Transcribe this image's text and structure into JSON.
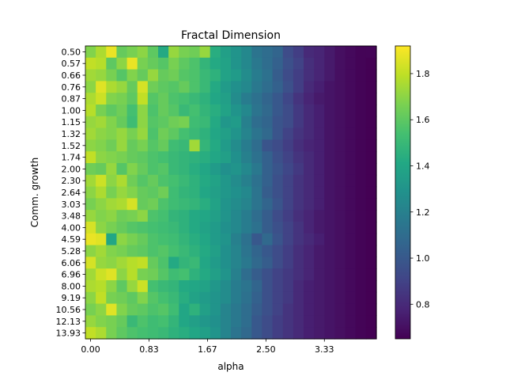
{
  "chart_data": {
    "type": "heatmap",
    "title": "Fractal Dimension",
    "xlabel": "alpha",
    "ylabel": "Comm. growth",
    "colormap": "viridis",
    "color_range": [
      0.65,
      1.92
    ],
    "colorbar_ticks": [
      0.8,
      1.0,
      1.2,
      1.4,
      1.6,
      1.8
    ],
    "colorbar_tick_labels": [
      "0.8",
      "1.0",
      "1.2",
      "1.4",
      "1.6",
      "1.8"
    ],
    "x_range": [
      0.0,
      4.0
    ],
    "x_ticks": [
      0.0,
      0.8333,
      1.6667,
      2.5,
      3.3333
    ],
    "x_tick_labels": [
      "0.00",
      "0.83",
      "1.67",
      "2.50",
      "3.33"
    ],
    "y_labels": [
      "0.50",
      "0.57",
      "0.66",
      "0.76",
      "0.87",
      "1.00",
      "1.15",
      "1.32",
      "1.52",
      "1.74",
      "2.00",
      "2.30",
      "2.64",
      "3.03",
      "3.48",
      "4.00",
      "4.59",
      "5.28",
      "6.06",
      "6.96",
      "8.00",
      "9.19",
      "10.56",
      "12.13",
      "13.93"
    ],
    "z": [
      [
        1.68,
        1.76,
        1.88,
        1.62,
        1.66,
        1.7,
        1.6,
        1.42,
        1.72,
        1.66,
        1.64,
        1.72,
        1.44,
        1.36,
        1.3,
        1.24,
        1.14,
        1.1,
        1.06,
        0.94,
        0.88,
        0.8,
        0.78,
        0.74,
        0.7,
        0.68,
        0.66,
        0.66
      ],
      [
        1.8,
        1.78,
        1.6,
        1.7,
        1.88,
        1.66,
        1.62,
        1.58,
        1.66,
        1.6,
        1.56,
        1.48,
        1.42,
        1.38,
        1.3,
        1.24,
        1.16,
        1.1,
        1.04,
        0.96,
        0.9,
        0.82,
        0.78,
        0.74,
        0.7,
        0.68,
        0.66,
        0.65
      ],
      [
        1.74,
        1.72,
        1.66,
        1.58,
        1.68,
        1.62,
        1.72,
        1.62,
        1.64,
        1.58,
        1.56,
        1.5,
        1.46,
        1.38,
        1.34,
        1.26,
        1.18,
        1.12,
        1.02,
        0.94,
        0.88,
        0.82,
        0.78,
        0.74,
        0.7,
        0.68,
        0.66,
        0.65
      ],
      [
        1.7,
        1.86,
        1.76,
        1.72,
        1.62,
        1.84,
        1.64,
        1.6,
        1.58,
        1.62,
        1.56,
        1.5,
        1.42,
        1.34,
        1.28,
        1.24,
        1.16,
        1.1,
        1.04,
        0.96,
        0.88,
        0.8,
        0.76,
        0.72,
        0.7,
        0.68,
        0.66,
        0.65
      ],
      [
        1.76,
        1.82,
        1.68,
        1.66,
        1.6,
        1.8,
        1.58,
        1.62,
        1.56,
        1.54,
        1.5,
        1.46,
        1.4,
        1.36,
        1.26,
        1.18,
        1.12,
        1.06,
        1.0,
        0.92,
        0.84,
        0.78,
        0.74,
        0.72,
        0.7,
        0.68,
        0.66,
        0.65
      ],
      [
        1.78,
        1.66,
        1.6,
        1.64,
        1.54,
        1.7,
        1.56,
        1.62,
        1.58,
        1.5,
        1.54,
        1.48,
        1.44,
        1.38,
        1.3,
        1.24,
        1.14,
        1.08,
        1.0,
        0.94,
        0.86,
        0.8,
        0.76,
        0.72,
        0.7,
        0.68,
        0.66,
        0.65
      ],
      [
        1.72,
        1.74,
        1.68,
        1.62,
        1.52,
        1.7,
        1.58,
        1.6,
        1.64,
        1.66,
        1.52,
        1.5,
        1.42,
        1.32,
        1.34,
        1.2,
        1.1,
        1.06,
        0.98,
        0.94,
        0.86,
        0.8,
        0.76,
        0.72,
        0.7,
        0.68,
        0.66,
        0.65
      ],
      [
        1.74,
        1.7,
        1.68,
        1.72,
        1.66,
        1.72,
        1.56,
        1.64,
        1.6,
        1.54,
        1.5,
        1.46,
        1.4,
        1.36,
        1.3,
        1.22,
        1.14,
        1.08,
        0.98,
        0.9,
        0.84,
        0.8,
        0.76,
        0.72,
        0.7,
        0.68,
        0.66,
        0.65
      ],
      [
        1.7,
        1.68,
        1.64,
        1.72,
        1.62,
        1.66,
        1.58,
        1.62,
        1.52,
        1.5,
        1.74,
        1.48,
        1.42,
        1.34,
        1.26,
        1.18,
        1.1,
        0.98,
        0.94,
        0.88,
        0.82,
        0.78,
        0.76,
        0.72,
        0.7,
        0.68,
        0.66,
        0.65
      ],
      [
        1.8,
        1.7,
        1.68,
        1.66,
        1.62,
        1.6,
        1.56,
        1.54,
        1.5,
        1.48,
        1.46,
        1.44,
        1.4,
        1.36,
        1.28,
        1.2,
        1.12,
        1.04,
        0.96,
        0.9,
        0.84,
        0.8,
        0.76,
        0.72,
        0.7,
        0.68,
        0.66,
        0.65
      ],
      [
        1.64,
        1.62,
        1.72,
        1.58,
        1.68,
        1.62,
        1.56,
        1.58,
        1.5,
        1.48,
        1.44,
        1.4,
        1.34,
        1.28,
        1.3,
        1.24,
        1.16,
        1.04,
        0.98,
        0.92,
        0.86,
        0.8,
        0.76,
        0.72,
        0.7,
        0.68,
        0.66,
        0.65
      ],
      [
        1.74,
        1.82,
        1.7,
        1.76,
        1.64,
        1.58,
        1.62,
        1.56,
        1.54,
        1.5,
        1.46,
        1.42,
        1.38,
        1.32,
        1.26,
        1.2,
        1.12,
        1.04,
        0.96,
        0.9,
        0.84,
        0.8,
        0.76,
        0.72,
        0.7,
        0.68,
        0.66,
        0.65
      ],
      [
        1.7,
        1.76,
        1.66,
        1.72,
        1.68,
        1.62,
        1.6,
        1.64,
        1.52,
        1.48,
        1.46,
        1.4,
        1.36,
        1.32,
        1.28,
        1.24,
        1.14,
        1.02,
        0.96,
        0.9,
        0.84,
        0.8,
        0.76,
        0.72,
        0.7,
        0.68,
        0.66,
        0.65
      ],
      [
        1.66,
        1.7,
        1.74,
        1.76,
        1.84,
        1.62,
        1.64,
        1.56,
        1.52,
        1.5,
        1.48,
        1.44,
        1.38,
        1.3,
        1.26,
        1.22,
        1.14,
        1.06,
        0.98,
        0.9,
        0.84,
        0.8,
        0.76,
        0.72,
        0.7,
        0.68,
        0.66,
        0.65
      ],
      [
        1.72,
        1.68,
        1.7,
        1.64,
        1.66,
        1.7,
        1.56,
        1.54,
        1.48,
        1.46,
        1.42,
        1.4,
        1.36,
        1.3,
        1.24,
        1.18,
        1.1,
        1.02,
        0.94,
        0.88,
        0.82,
        0.78,
        0.74,
        0.72,
        0.7,
        0.68,
        0.66,
        0.65
      ],
      [
        1.84,
        1.7,
        1.66,
        1.62,
        1.58,
        1.56,
        1.54,
        1.52,
        1.5,
        1.46,
        1.42,
        1.38,
        1.34,
        1.28,
        1.24,
        1.18,
        1.12,
        1.02,
        0.96,
        0.9,
        0.84,
        0.78,
        0.74,
        0.72,
        0.7,
        0.68,
        0.66,
        0.65
      ],
      [
        1.88,
        1.86,
        1.4,
        1.7,
        1.66,
        1.62,
        1.56,
        1.54,
        1.52,
        1.48,
        1.44,
        1.4,
        1.34,
        1.3,
        1.2,
        1.12,
        1.0,
        1.08,
        0.98,
        0.9,
        0.84,
        0.8,
        0.76,
        0.72,
        0.7,
        0.68,
        0.66,
        0.65
      ],
      [
        1.7,
        1.74,
        1.68,
        1.66,
        1.62,
        1.6,
        1.56,
        1.58,
        1.54,
        1.5,
        1.46,
        1.42,
        1.36,
        1.28,
        1.22,
        1.14,
        1.06,
        1.0,
        0.94,
        0.88,
        0.82,
        0.78,
        0.74,
        0.72,
        0.7,
        0.68,
        0.66,
        0.65
      ],
      [
        1.84,
        1.72,
        1.7,
        1.74,
        1.78,
        1.8,
        1.62,
        1.56,
        1.42,
        1.48,
        1.5,
        1.4,
        1.34,
        1.28,
        1.22,
        1.16,
        1.08,
        1.02,
        0.94,
        0.88,
        0.82,
        0.78,
        0.74,
        0.72,
        0.7,
        0.68,
        0.66,
        0.65
      ],
      [
        1.74,
        1.82,
        1.86,
        1.7,
        1.78,
        1.66,
        1.64,
        1.58,
        1.52,
        1.54,
        1.46,
        1.42,
        1.36,
        1.3,
        1.2,
        1.1,
        1.02,
        0.96,
        0.9,
        0.86,
        0.82,
        0.78,
        0.74,
        0.72,
        0.7,
        0.68,
        0.66,
        0.65
      ],
      [
        1.76,
        1.78,
        1.7,
        1.6,
        1.72,
        1.82,
        1.54,
        1.5,
        1.48,
        1.42,
        1.4,
        1.38,
        1.32,
        1.26,
        1.18,
        1.14,
        1.06,
        0.96,
        0.9,
        0.86,
        0.8,
        0.76,
        0.74,
        0.72,
        0.7,
        0.68,
        0.66,
        0.65
      ],
      [
        1.7,
        1.8,
        1.66,
        1.64,
        1.6,
        1.68,
        1.58,
        1.54,
        1.5,
        1.44,
        1.38,
        1.34,
        1.3,
        1.26,
        1.18,
        1.12,
        1.04,
        0.96,
        0.9,
        0.86,
        0.8,
        0.76,
        0.74,
        0.72,
        0.7,
        0.68,
        0.66,
        0.65
      ],
      [
        1.66,
        1.7,
        1.86,
        1.68,
        1.62,
        1.6,
        1.56,
        1.58,
        1.52,
        1.4,
        1.46,
        1.36,
        1.3,
        1.22,
        1.16,
        1.1,
        1.02,
        0.96,
        0.9,
        0.84,
        0.8,
        0.76,
        0.74,
        0.72,
        0.7,
        0.68,
        0.66,
        0.65
      ],
      [
        1.72,
        1.68,
        1.66,
        1.62,
        1.5,
        1.56,
        1.52,
        1.54,
        1.48,
        1.4,
        1.36,
        1.32,
        1.28,
        1.22,
        1.16,
        1.1,
        1.0,
        0.94,
        0.88,
        0.84,
        0.8,
        0.76,
        0.74,
        0.72,
        0.7,
        0.68,
        0.66,
        0.65
      ],
      [
        1.8,
        1.76,
        1.66,
        1.6,
        1.56,
        1.54,
        1.52,
        1.5,
        1.46,
        1.44,
        1.4,
        1.36,
        1.3,
        1.22,
        1.14,
        1.08,
        1.0,
        0.94,
        0.88,
        0.84,
        0.8,
        0.76,
        0.74,
        0.72,
        0.7,
        0.68,
        0.66,
        0.65
      ]
    ]
  }
}
